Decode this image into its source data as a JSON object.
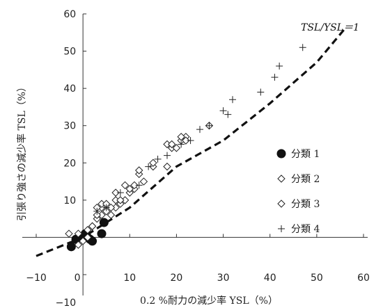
{
  "chart_data": {
    "type": "scatter",
    "xlabel": "0.2 %耐力の減少率 YSL（%）",
    "ylabel": "引張り強さの減少率 TSL（%）",
    "xlim": [
      -10,
      60
    ],
    "ylim": [
      -10,
      60
    ],
    "x_ticks": [
      -10,
      0,
      10,
      20,
      30,
      40,
      50,
      60
    ],
    "y_ticks": [
      -10,
      0,
      10,
      20,
      30,
      40,
      50,
      60
    ],
    "x_tick_labels": [
      "−10",
      "0",
      "10",
      "20",
      "30",
      "40",
      "50",
      "60"
    ],
    "y_tick_labels": [
      "−10",
      "0",
      "10",
      "20",
      "30",
      "40",
      "50",
      "60"
    ],
    "grid": false,
    "legend_position": "right",
    "reference_line": {
      "label": "TSL/YSL＝1",
      "style": "dashed",
      "points": [
        [
          -10,
          -5
        ],
        [
          0,
          0
        ],
        [
          10,
          8
        ],
        [
          20,
          19
        ],
        [
          30,
          26
        ],
        [
          40,
          36
        ],
        [
          50,
          47
        ],
        [
          56,
          56
        ]
      ]
    },
    "series": [
      {
        "name": "分類 1",
        "marker": "filled-circle",
        "points": [
          [
            -2.5,
            -2.5
          ],
          [
            -1.5,
            -0.5
          ],
          [
            0,
            0
          ],
          [
            0.5,
            1
          ],
          [
            1,
            0
          ],
          [
            1.5,
            -0.5
          ],
          [
            2,
            -1
          ],
          [
            4,
            1
          ],
          [
            4.5,
            4
          ]
        ]
      },
      {
        "name": "分類 2",
        "marker": "diamond",
        "points": [
          [
            -1,
            1
          ],
          [
            1,
            0
          ],
          [
            2,
            3
          ],
          [
            3,
            5
          ],
          [
            4,
            6
          ],
          [
            4,
            8
          ],
          [
            5,
            7
          ],
          [
            6,
            6
          ],
          [
            7,
            8
          ],
          [
            7,
            10
          ],
          [
            8,
            9
          ],
          [
            9,
            10
          ],
          [
            10,
            12
          ],
          [
            11,
            13
          ],
          [
            12,
            17
          ],
          [
            13,
            15
          ],
          [
            15,
            19
          ],
          [
            18,
            19
          ],
          [
            19,
            24
          ],
          [
            20,
            24
          ],
          [
            21,
            26
          ],
          [
            22,
            27
          ],
          [
            27,
            30
          ]
        ]
      },
      {
        "name": "分類 3",
        "marker": "diamond",
        "points": [
          [
            -3,
            1
          ],
          [
            -1,
            -2
          ],
          [
            0,
            -1
          ],
          [
            1,
            2
          ],
          [
            2,
            3
          ],
          [
            3,
            6
          ],
          [
            3,
            8
          ],
          [
            4,
            9
          ],
          [
            5,
            9
          ],
          [
            6,
            8
          ],
          [
            7,
            12
          ],
          [
            8,
            10
          ],
          [
            9,
            14
          ],
          [
            10,
            13
          ],
          [
            11,
            14
          ],
          [
            12,
            18
          ],
          [
            15,
            20
          ],
          [
            18,
            25
          ],
          [
            19,
            25
          ],
          [
            21,
            27
          ],
          [
            22,
            26
          ]
        ]
      },
      {
        "name": "分類 4",
        "marker": "plus",
        "points": [
          [
            3,
            7
          ],
          [
            5,
            8
          ],
          [
            8,
            12
          ],
          [
            12,
            14
          ],
          [
            14,
            19
          ],
          [
            16,
            21
          ],
          [
            18,
            22
          ],
          [
            21,
            25
          ],
          [
            23,
            26
          ],
          [
            25,
            29
          ],
          [
            27,
            30
          ],
          [
            30,
            34
          ],
          [
            31,
            33
          ],
          [
            32,
            37
          ],
          [
            38,
            39
          ],
          [
            41,
            43
          ],
          [
            42,
            46
          ],
          [
            47,
            51
          ]
        ]
      }
    ]
  }
}
